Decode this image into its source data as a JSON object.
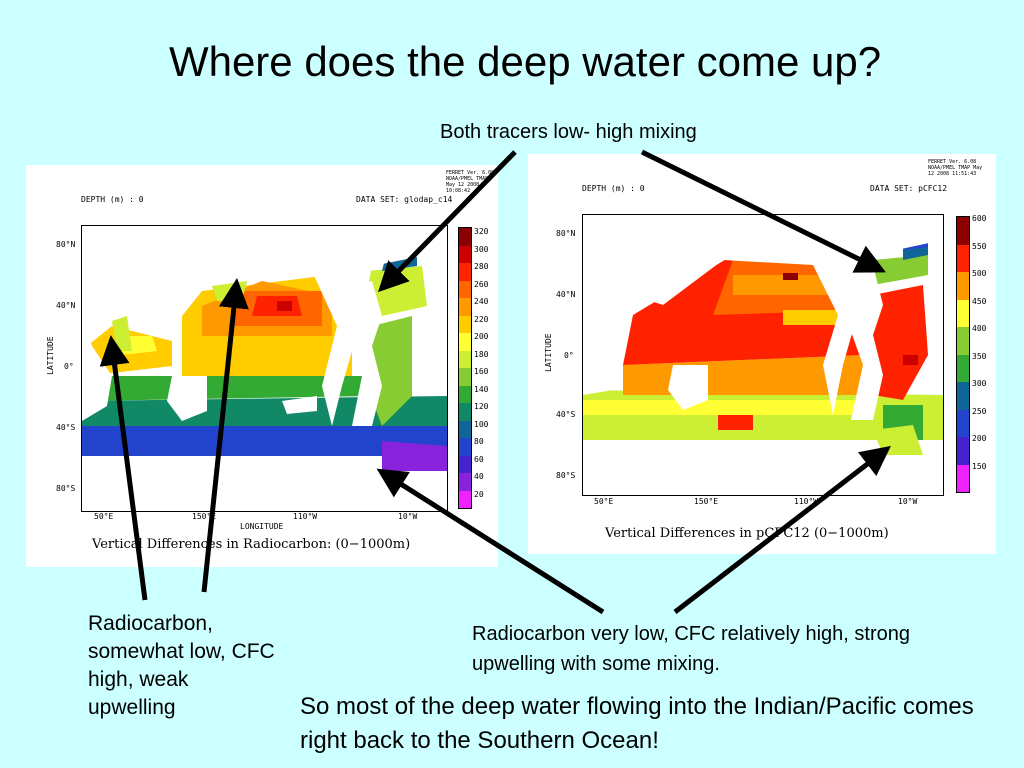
{
  "title": "Where does the deep water come up?",
  "notes": {
    "top": "Both tracers low- high mixing",
    "left": "Radiocarbon, somewhat low, CFC high, weak upwelling",
    "right": "Radiocarbon very low, CFC relatively high, strong upwelling with some mixing.",
    "bottom": "So most of the deep water flowing into the Indian/Pacific comes right back to the Southern Ocean!"
  },
  "left_plot": {
    "depth_label": "DEPTH (m) : 0",
    "dataset_label": "DATA SET: glodap_c14",
    "ferret_info": "FERRET Ver. 6.08 NOAA/PMEL TMAP May 12 2008 10:08:42",
    "caption": "Vertical Differences in Radiocarbon: (0−1000m)",
    "ylabel": "LATITUDE",
    "xlabel": "LONGITUDE",
    "lat_ticks": [
      "80°N",
      "40°N",
      "0°",
      "40°S",
      "80°S"
    ],
    "lon_ticks": [
      "50°E",
      "150°E",
      "110°W",
      "10°W"
    ],
    "colorbar": [
      "320",
      "300",
      "280",
      "260",
      "240",
      "220",
      "200",
      "180",
      "160",
      "140",
      "120",
      "100",
      "80",
      "60",
      "40",
      "20"
    ]
  },
  "right_plot": {
    "depth_label": "DEPTH (m) : 0",
    "dataset_label": "DATA SET: pCFC12",
    "ferret_info": "FERRET Ver. 6.08 NOAA/PMEL TMAP May 12 2008 11:51:43",
    "caption": "Vertical Differences in pCFC12 (0−1000m)",
    "ylabel": "LATITUDE",
    "lat_ticks": [
      "80°N",
      "40°N",
      "0°",
      "40°S",
      "80°S"
    ],
    "lon_ticks": [
      "50°E",
      "150°E",
      "110°W",
      "10°W"
    ],
    "colorbar": [
      "600",
      "550",
      "500",
      "450",
      "400",
      "350",
      "300",
      "250",
      "200",
      "150"
    ]
  },
  "colors": {
    "background": "#ccffff",
    "arrow": "#000000",
    "scale": [
      "#8b0000",
      "#cc0000",
      "#ff2200",
      "#ff6600",
      "#ff9900",
      "#ffcc00",
      "#ffff33",
      "#ccee33",
      "#88cc33",
      "#33aa33",
      "#118866",
      "#116699",
      "#2244cc",
      "#4422cc",
      "#8822dd",
      "#ee22ff"
    ]
  }
}
